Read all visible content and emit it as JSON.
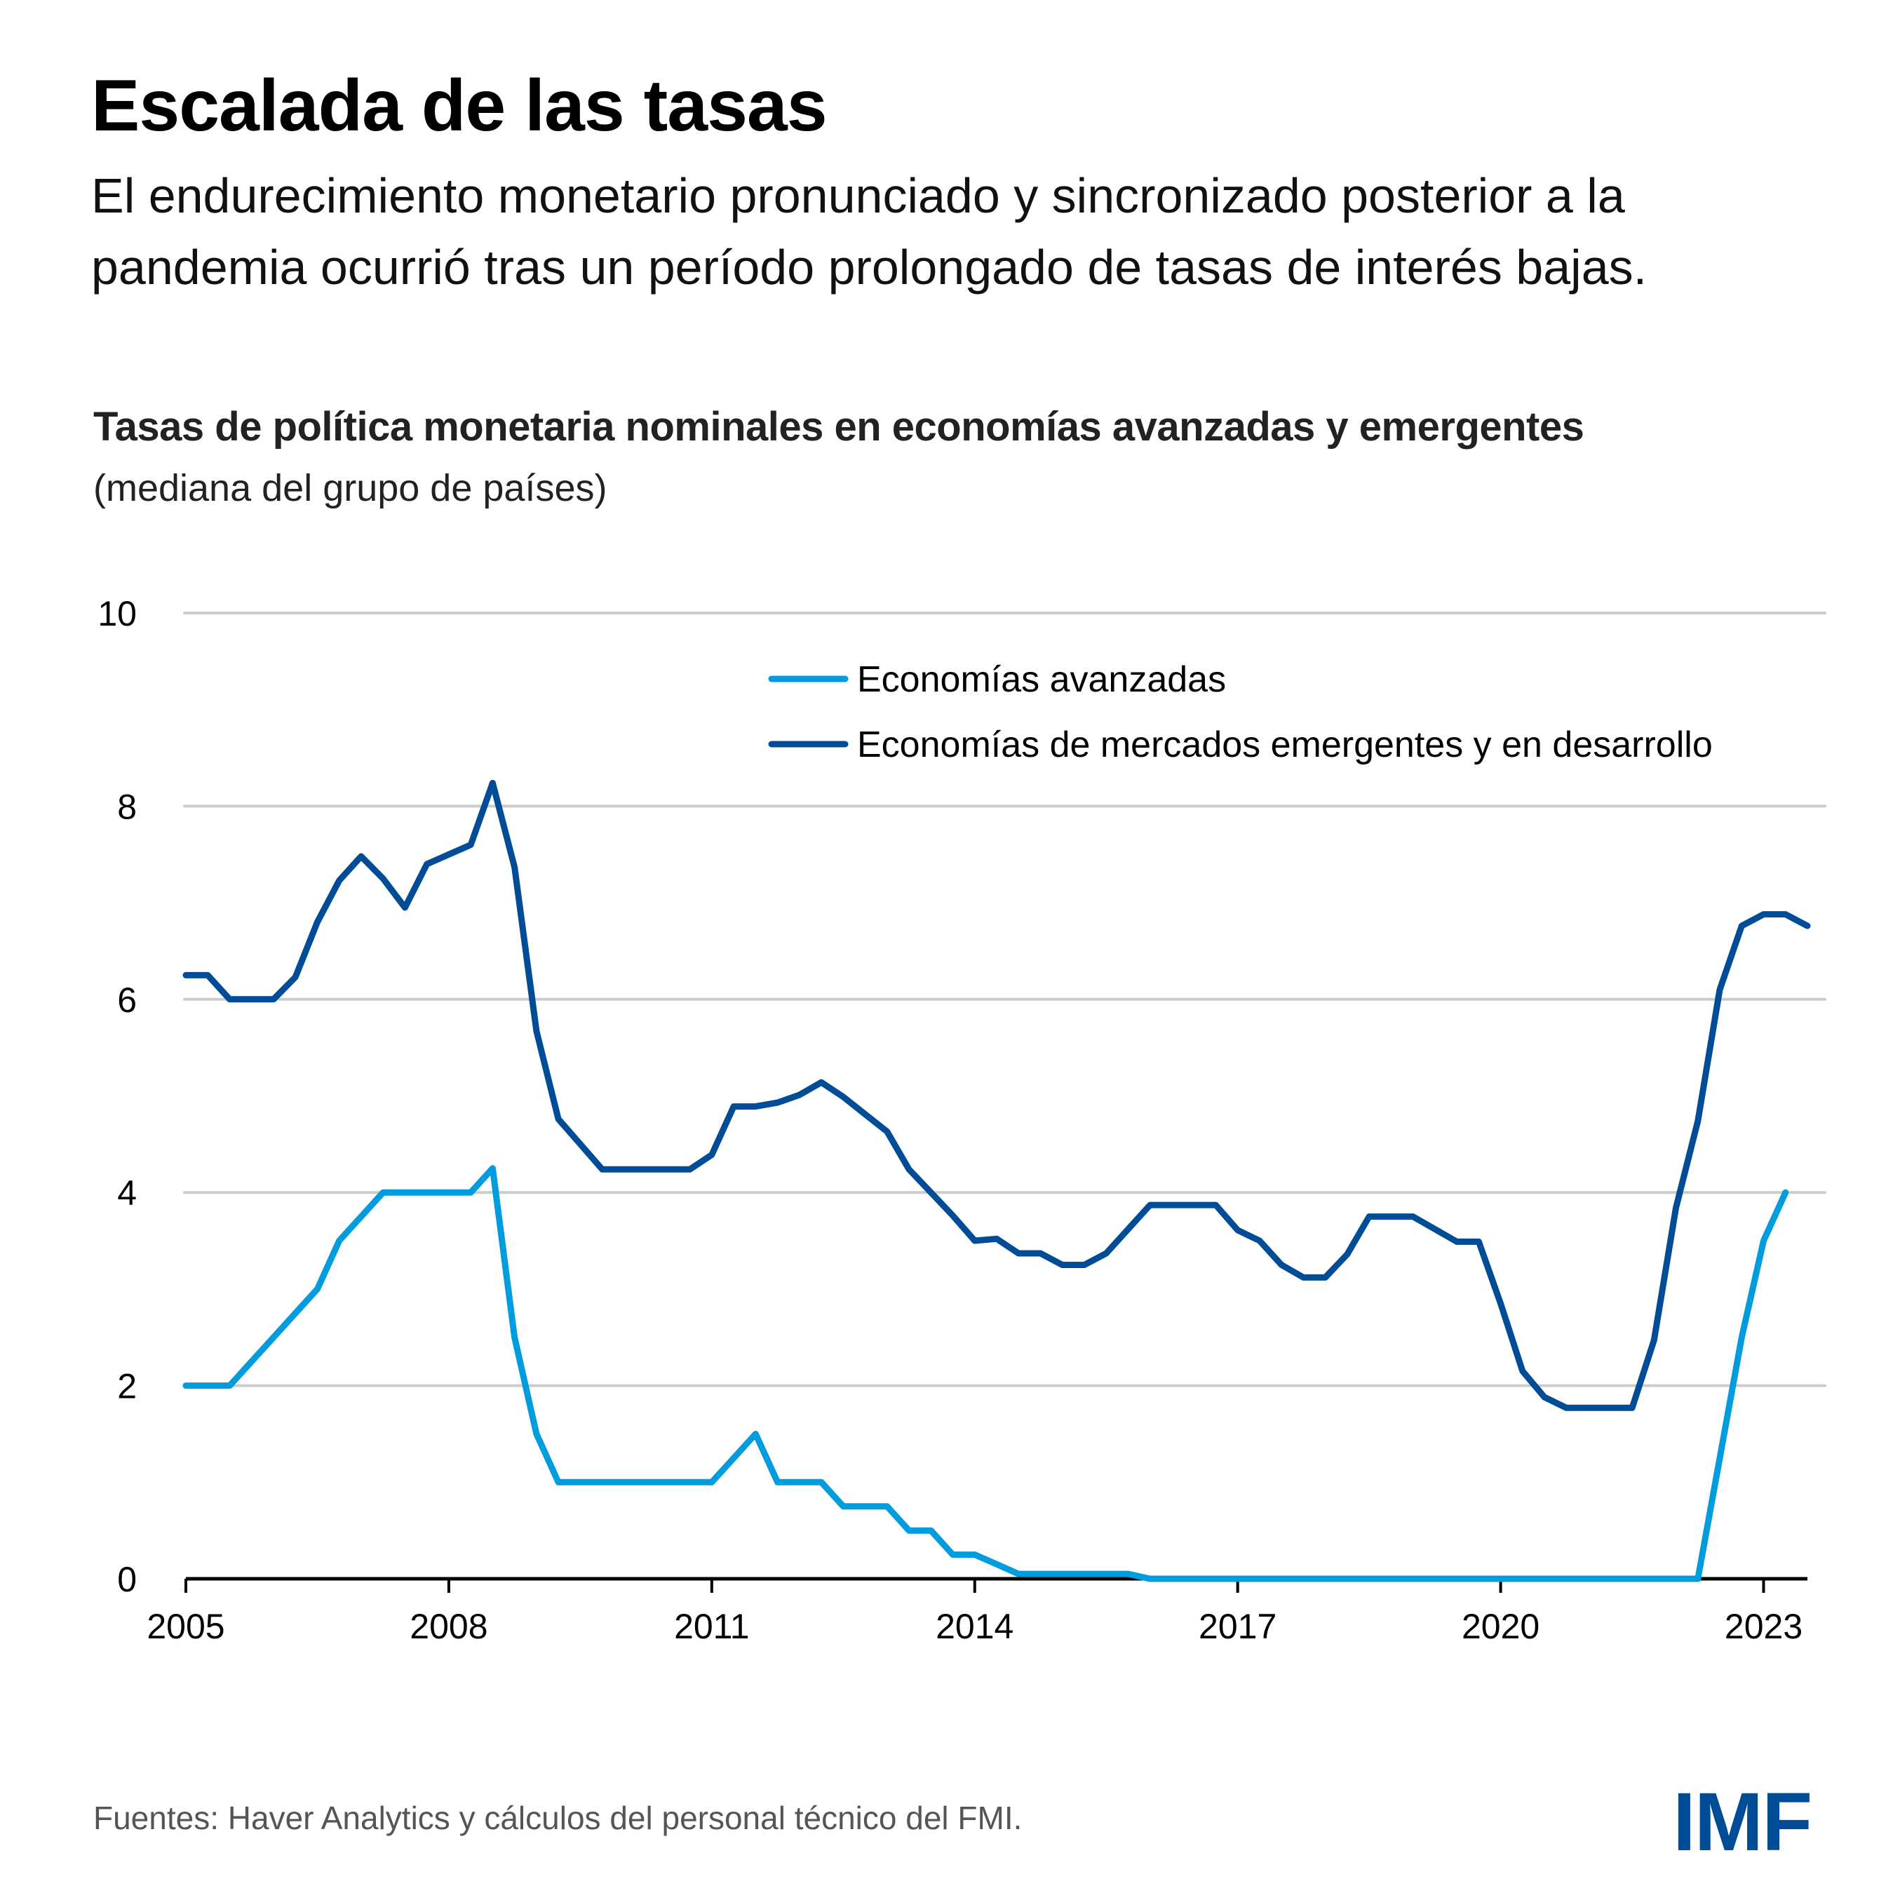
{
  "header": {
    "title": "Escalada de las tasas",
    "subtitle": "El endurecimiento monetario pronunciado y sincronizado posterior a la pandemia ocurrió tras un período prolongado de tasas de interés bajas."
  },
  "chart_data": {
    "type": "line",
    "title": "Tasas de política monetaria nominales en economías avanzadas y emergentes",
    "subtitle": "(mediana del grupo de países)",
    "xlabel": "",
    "ylabel": "",
    "xlim": [
      2005,
      2023.5
    ],
    "ylim": [
      0,
      10
    ],
    "yticks": [
      0,
      2,
      4,
      6,
      8,
      10
    ],
    "xticks": [
      2005,
      2008,
      2011,
      2014,
      2017,
      2020,
      2023
    ],
    "grid": true,
    "legend_position": "top-right",
    "frequency": "quarterly",
    "x": [
      2005.0,
      2005.25,
      2005.5,
      2005.75,
      2006.0,
      2006.25,
      2006.5,
      2006.75,
      2007.0,
      2007.25,
      2007.5,
      2007.75,
      2008.0,
      2008.25,
      2008.5,
      2008.75,
      2009.0,
      2009.25,
      2009.5,
      2009.75,
      2010.0,
      2010.25,
      2010.5,
      2010.75,
      2011.0,
      2011.25,
      2011.5,
      2011.75,
      2012.0,
      2012.25,
      2012.5,
      2012.75,
      2013.0,
      2013.25,
      2013.5,
      2013.75,
      2014.0,
      2014.25,
      2014.5,
      2014.75,
      2015.0,
      2015.25,
      2015.5,
      2015.75,
      2016.0,
      2016.25,
      2016.5,
      2016.75,
      2017.0,
      2017.25,
      2017.5,
      2017.75,
      2018.0,
      2018.25,
      2018.5,
      2018.75,
      2019.0,
      2019.25,
      2019.5,
      2019.75,
      2020.0,
      2020.25,
      2020.5,
      2020.75,
      2021.0,
      2021.25,
      2021.5,
      2021.75,
      2022.0,
      2022.25,
      2022.5,
      2022.75,
      2023.0,
      2023.25,
      2023.5
    ],
    "series": [
      {
        "name": "Economías avanzadas",
        "color": "#009cde",
        "values": [
          2.0,
          2.0,
          2.0,
          2.25,
          2.5,
          2.75,
          3.0,
          3.5,
          3.75,
          4.0,
          4.0,
          4.0,
          4.0,
          4.0,
          4.25,
          2.5,
          1.5,
          1.0,
          1.0,
          1.0,
          1.0,
          1.0,
          1.0,
          1.0,
          1.0,
          1.25,
          1.5,
          1.0,
          1.0,
          1.0,
          0.75,
          0.75,
          0.75,
          0.5,
          0.5,
          0.25,
          0.25,
          0.15,
          0.05,
          0.05,
          0.05,
          0.05,
          0.05,
          0.05,
          0.0,
          0.0,
          0.0,
          0.0,
          0.0,
          0.0,
          0.0,
          0.0,
          0.0,
          0.0,
          0.0,
          0.0,
          0.0,
          0.0,
          0.0,
          0.0,
          0.0,
          0.0,
          0.0,
          0.0,
          0.0,
          0.0,
          0.0,
          0.0,
          0.0,
          0.0,
          1.25,
          2.5,
          3.5,
          4.0,
          null
        ]
      },
      {
        "name": "Economías de mercados emergentes y en desarrollo",
        "color": "#004c97",
        "values": [
          6.25,
          6.25,
          6.0,
          6.0,
          6.0,
          6.23,
          6.8,
          7.23,
          7.48,
          7.25,
          6.95,
          7.4,
          7.5,
          7.6,
          8.24,
          7.37,
          5.67,
          4.76,
          4.5,
          4.24,
          4.24,
          4.24,
          4.24,
          4.24,
          4.39,
          4.89,
          4.89,
          4.93,
          5.01,
          5.14,
          4.99,
          4.81,
          4.63,
          4.24,
          4.0,
          3.76,
          3.5,
          3.52,
          3.37,
          3.37,
          3.25,
          3.25,
          3.37,
          3.62,
          3.87,
          3.87,
          3.87,
          3.87,
          3.61,
          3.5,
          3.25,
          3.12,
          3.12,
          3.36,
          3.75,
          3.75,
          3.75,
          3.62,
          3.49,
          3.49,
          2.85,
          2.15,
          1.88,
          1.77,
          1.77,
          1.77,
          1.77,
          2.47,
          3.84,
          4.74,
          6.1,
          6.76,
          6.88,
          6.88,
          6.76
        ]
      }
    ]
  },
  "footer": {
    "source": "Fuentes: Haver Analytics y cálculos del personal técnico del FMI.",
    "logo_text": "IMF"
  },
  "colors": {
    "advanced": "#009cde",
    "emerging": "#004c97",
    "grid": "#cccccc",
    "logo": "#004c97"
  }
}
